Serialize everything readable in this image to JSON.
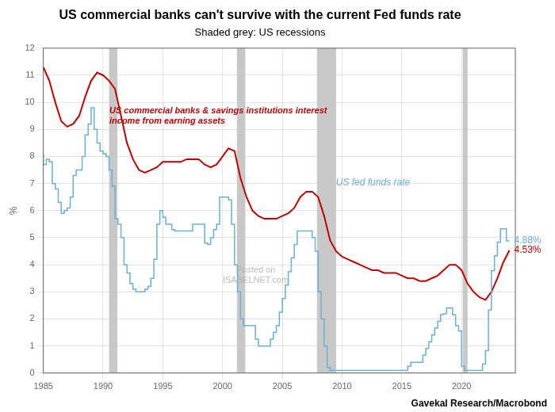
{
  "chart_data": {
    "type": "line",
    "title": "US commercial banks can't survive with the current Fed funds rate",
    "subtitle": "Shaded grey: US recessions",
    "ylabel": "%",
    "source": "Gavekal Research/Macrobond",
    "watermark": "Posted on\nISABELNET.com",
    "xlim": [
      1985,
      2024.5
    ],
    "ylim": [
      0,
      12
    ],
    "xticks": [
      1985,
      1990,
      1995,
      2000,
      2005,
      2010,
      2015,
      2020
    ],
    "yticks": [
      0,
      1,
      2,
      3,
      4,
      5,
      6,
      7,
      8,
      9,
      10,
      11,
      12
    ],
    "grid": true,
    "recession_bands": [
      [
        1990.5,
        1991.2
      ],
      [
        2001.2,
        2001.9
      ],
      [
        2007.9,
        2009.5
      ],
      [
        2020.1,
        2020.5
      ]
    ],
    "recession_color": "#c8c8c8",
    "series": [
      {
        "name": "US fed funds rate",
        "color": "#6baed6",
        "line_style": "steps",
        "end_label": "4.88%",
        "x": [
          1985.0,
          1985.25,
          1985.5,
          1985.75,
          1986.0,
          1986.25,
          1986.5,
          1986.75,
          1987.0,
          1987.25,
          1987.5,
          1987.75,
          1988.0,
          1988.25,
          1988.5,
          1988.75,
          1989.0,
          1989.25,
          1989.5,
          1989.75,
          1990.0,
          1990.25,
          1990.5,
          1990.75,
          1991.0,
          1991.25,
          1991.5,
          1991.75,
          1992.0,
          1992.25,
          1992.5,
          1992.75,
          1993.0,
          1993.25,
          1993.5,
          1993.75,
          1994.0,
          1994.25,
          1994.5,
          1994.75,
          1995.0,
          1995.25,
          1995.5,
          1995.75,
          1996.0,
          1996.25,
          1996.5,
          1996.75,
          1997.0,
          1997.25,
          1997.5,
          1997.75,
          1998.0,
          1998.25,
          1998.5,
          1998.75,
          1999.0,
          1999.25,
          1999.5,
          1999.75,
          2000.0,
          2000.25,
          2000.5,
          2000.75,
          2001.0,
          2001.25,
          2001.5,
          2001.75,
          2002.0,
          2002.25,
          2002.5,
          2002.75,
          2003.0,
          2003.25,
          2003.5,
          2003.75,
          2004.0,
          2004.25,
          2004.5,
          2004.75,
          2005.0,
          2005.25,
          2005.5,
          2005.75,
          2006.0,
          2006.25,
          2006.5,
          2006.75,
          2007.0,
          2007.25,
          2007.5,
          2007.75,
          2008.0,
          2008.25,
          2008.5,
          2008.75,
          2009.0,
          2009.25,
          2009.5,
          2009.75,
          2010.0,
          2010.25,
          2010.5,
          2010.75,
          2011.0,
          2011.25,
          2011.5,
          2011.75,
          2012.0,
          2012.25,
          2012.5,
          2012.75,
          2013.0,
          2013.25,
          2013.5,
          2013.75,
          2014.0,
          2014.25,
          2014.5,
          2014.75,
          2015.0,
          2015.25,
          2015.5,
          2015.75,
          2016.0,
          2016.25,
          2016.5,
          2016.75,
          2017.0,
          2017.25,
          2017.5,
          2017.75,
          2018.0,
          2018.25,
          2018.5,
          2018.75,
          2019.0,
          2019.25,
          2019.5,
          2019.75,
          2020.0,
          2020.25,
          2020.5,
          2020.75,
          2021.0,
          2021.25,
          2021.5,
          2021.75,
          2022.0,
          2022.25,
          2022.5,
          2022.75,
          2023.0,
          2023.25,
          2023.5,
          2023.75,
          2024.0
        ],
        "values": [
          8.1,
          7.7,
          7.9,
          7.8,
          7.0,
          6.8,
          6.3,
          5.9,
          6.0,
          6.1,
          6.5,
          7.3,
          7.5,
          7.5,
          8.0,
          8.8,
          9.2,
          9.8,
          9.0,
          8.5,
          8.2,
          8.1,
          8.0,
          7.5,
          6.9,
          5.7,
          5.5,
          5.0,
          4.0,
          3.7,
          3.3,
          3.1,
          3.0,
          3.0,
          3.0,
          3.1,
          3.2,
          3.5,
          4.2,
          5.5,
          6.0,
          5.75,
          5.5,
          5.5,
          5.3,
          5.25,
          5.25,
          5.25,
          5.25,
          5.25,
          5.25,
          5.5,
          5.5,
          5.5,
          5.5,
          4.8,
          4.75,
          5.0,
          5.3,
          5.5,
          6.5,
          6.5,
          6.5,
          6.4,
          5.5,
          4.0,
          3.0,
          2.0,
          1.75,
          1.75,
          1.75,
          1.75,
          1.25,
          1.0,
          1.0,
          1.0,
          1.0,
          1.25,
          1.5,
          1.75,
          2.25,
          2.75,
          3.25,
          3.75,
          4.25,
          4.75,
          5.25,
          5.25,
          5.25,
          5.25,
          5.25,
          5.0,
          4.5,
          3.0,
          2.0,
          1.0,
          0.2,
          0.1,
          0.1,
          0.1,
          0.1,
          0.1,
          0.1,
          0.1,
          0.1,
          0.1,
          0.1,
          0.1,
          0.1,
          0.1,
          0.1,
          0.1,
          0.1,
          0.1,
          0.1,
          0.1,
          0.1,
          0.1,
          0.1,
          0.1,
          0.1,
          0.1,
          0.1,
          0.25,
          0.4,
          0.4,
          0.4,
          0.4,
          0.66,
          0.91,
          1.15,
          1.41,
          1.66,
          1.91,
          2.16,
          2.2,
          2.4,
          2.4,
          2.15,
          1.75,
          1.55,
          0.25,
          0.1,
          0.1,
          0.1,
          0.1,
          0.1,
          0.1,
          0.33,
          0.83,
          2.33,
          3.78,
          4.33,
          4.83,
          5.33,
          5.33,
          4.88
        ]
      },
      {
        "name": "US commercial banks & savings institutions interest income from earning assets",
        "color": "#c00000",
        "line_style": "solid",
        "end_label": "4.53%",
        "x": [
          1985.0,
          1985.5,
          1986.0,
          1986.5,
          1987.0,
          1987.5,
          1988.0,
          1988.5,
          1989.0,
          1989.5,
          1990.0,
          1990.5,
          1991.0,
          1991.5,
          1992.0,
          1992.5,
          1993.0,
          1993.5,
          1994.0,
          1994.5,
          1995.0,
          1995.5,
          1996.0,
          1996.5,
          1997.0,
          1997.5,
          1998.0,
          1998.5,
          1999.0,
          1999.5,
          2000.0,
          2000.5,
          2001.0,
          2001.5,
          2002.0,
          2002.5,
          2003.0,
          2003.5,
          2004.0,
          2004.5,
          2005.0,
          2005.5,
          2006.0,
          2006.5,
          2007.0,
          2007.5,
          2008.0,
          2008.5,
          2009.0,
          2009.5,
          2010.0,
          2010.5,
          2011.0,
          2011.5,
          2012.0,
          2012.5,
          2013.0,
          2013.5,
          2014.0,
          2014.5,
          2015.0,
          2015.5,
          2016.0,
          2016.5,
          2017.0,
          2017.5,
          2018.0,
          2018.5,
          2019.0,
          2019.5,
          2020.0,
          2020.5,
          2021.0,
          2021.5,
          2022.0,
          2022.5,
          2023.0,
          2023.5,
          2024.0
        ],
        "values": [
          11.3,
          10.8,
          10.0,
          9.3,
          9.1,
          9.2,
          9.5,
          10.2,
          10.8,
          11.1,
          11.0,
          10.8,
          10.5,
          9.5,
          8.5,
          7.9,
          7.5,
          7.4,
          7.5,
          7.6,
          7.8,
          7.8,
          7.8,
          7.8,
          7.9,
          7.9,
          7.9,
          7.7,
          7.6,
          7.7,
          8.0,
          8.3,
          8.2,
          7.2,
          6.5,
          6.0,
          5.8,
          5.7,
          5.7,
          5.7,
          5.8,
          5.9,
          6.1,
          6.5,
          6.7,
          6.7,
          6.5,
          5.8,
          4.9,
          4.5,
          4.3,
          4.2,
          4.1,
          4.0,
          3.9,
          3.8,
          3.8,
          3.7,
          3.7,
          3.7,
          3.6,
          3.5,
          3.5,
          3.4,
          3.4,
          3.5,
          3.6,
          3.8,
          4.0,
          4.0,
          3.8,
          3.3,
          3.0,
          2.8,
          2.7,
          3.0,
          3.5,
          4.1,
          4.53
        ]
      }
    ]
  }
}
